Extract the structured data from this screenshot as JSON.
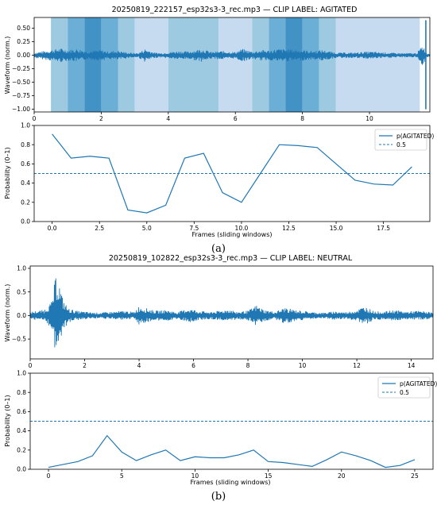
{
  "chart_data": [
    {
      "type": "line",
      "panel": "a",
      "title": "20250819_222157_esp32s3-3_rec.mp3 — CLIP LABEL: AGITATED",
      "xlabel": "",
      "ylabel": "Waveform (norm.)",
      "xlim": [
        0,
        11.8
      ],
      "ylim": [
        -1.05,
        0.7
      ],
      "xticks": [
        "0",
        "2",
        "4",
        "6",
        "8",
        "10"
      ],
      "yticks": [
        "0.50",
        "0.25",
        "0.00",
        "−0.25",
        "−0.50",
        "−0.75",
        "−1.00"
      ],
      "shaded_windows": [
        {
          "start": 0.5,
          "end": 1.0,
          "level": 1
        },
        {
          "start": 1.0,
          "end": 1.5,
          "level": 2
        },
        {
          "start": 1.5,
          "end": 2.0,
          "level": 3
        },
        {
          "start": 2.0,
          "end": 2.5,
          "level": 2
        },
        {
          "start": 2.5,
          "end": 3.0,
          "level": 1
        },
        {
          "start": 3.0,
          "end": 4.0,
          "level": 0
        },
        {
          "start": 4.0,
          "end": 5.5,
          "level": 1
        },
        {
          "start": 5.5,
          "end": 6.5,
          "level": 0
        },
        {
          "start": 6.5,
          "end": 7.0,
          "level": 1
        },
        {
          "start": 7.0,
          "end": 7.5,
          "level": 2
        },
        {
          "start": 7.5,
          "end": 8.0,
          "level": 3
        },
        {
          "start": 8.0,
          "end": 8.5,
          "level": 2
        },
        {
          "start": 8.5,
          "end": 9.0,
          "level": 1
        },
        {
          "start": 9.0,
          "end": 11.5,
          "level": 0
        }
      ],
      "envelope": {
        "x": [
          0,
          0.3,
          0.5,
          0.8,
          1.0,
          1.3,
          1.6,
          2.0,
          2.2,
          2.5,
          2.8,
          3.1,
          3.3,
          3.6,
          3.8,
          4.0,
          4.3,
          4.6,
          5.0,
          5.3,
          5.6,
          6.0,
          6.2,
          6.5,
          6.8,
          7.0,
          7.3,
          7.6,
          8.0,
          8.3,
          8.6,
          9.0,
          9.5,
          10.0,
          10.5,
          11.0,
          11.4,
          11.6,
          11.7,
          11.8
        ],
        "amp": [
          0.05,
          0.08,
          0.1,
          0.13,
          0.1,
          0.12,
          0.08,
          0.1,
          0.07,
          0.09,
          0.05,
          0.04,
          0.12,
          0.05,
          0.04,
          0.06,
          0.08,
          0.07,
          0.12,
          0.06,
          0.08,
          0.06,
          0.12,
          0.07,
          0.1,
          0.09,
          0.12,
          0.11,
          0.1,
          0.08,
          0.1,
          0.05,
          0.05,
          0.07,
          0.05,
          0.04,
          0.04,
          0.2,
          0.04,
          0.03
        ]
      },
      "spike": {
        "x": 11.68,
        "ymin": -1.0,
        "ymax": 0.65
      }
    },
    {
      "type": "line",
      "panel": "a",
      "xlabel": "Frames (sliding windows)",
      "ylabel": "Probability (0–1)",
      "xlim": [
        -0.95,
        19.95
      ],
      "ylim": [
        0,
        1.0
      ],
      "xticks": [
        "0.0",
        "2.5",
        "5.0",
        "7.5",
        "10.0",
        "12.5",
        "15.0",
        "17.5"
      ],
      "yticks": [
        "0.0",
        "0.2",
        "0.4",
        "0.6",
        "0.8",
        "1.0"
      ],
      "threshold": 0.5,
      "legend": [
        "p(AGITATED)",
        "0.5"
      ],
      "legend_position": "top-right",
      "x": [
        0,
        1,
        2,
        3,
        4,
        5,
        6,
        7,
        8,
        9,
        10,
        11,
        12,
        13,
        14,
        15,
        16,
        17,
        18,
        19
      ],
      "values": [
        0.91,
        0.66,
        0.68,
        0.66,
        0.12,
        0.09,
        0.17,
        0.66,
        0.71,
        0.3,
        0.2,
        0.5,
        0.8,
        0.79,
        0.77,
        0.6,
        0.43,
        0.39,
        0.38,
        0.57
      ]
    },
    {
      "type": "line",
      "panel": "b",
      "title": "20250819_102822_esp32s3-3_rec.mp3 — CLIP LABEL: NEUTRAL",
      "xlabel": "",
      "ylabel": "Waveform (norm.)",
      "xlim": [
        0,
        14.8
      ],
      "ylim": [
        -0.92,
        1.05
      ],
      "xticks": [
        "0",
        "2",
        "4",
        "6",
        "8",
        "10",
        "12",
        "14"
      ],
      "yticks": [
        "1.0",
        "0.5",
        "0.0",
        "−0.5"
      ],
      "envelope": {
        "x": [
          0,
          0.5,
          0.8,
          0.95,
          1.05,
          1.2,
          1.4,
          1.7,
          2.0,
          2.5,
          3.0,
          3.5,
          3.8,
          4.0,
          4.3,
          4.6,
          5.0,
          5.4,
          5.8,
          6.2,
          6.6,
          7.0,
          7.3,
          7.6,
          8.0,
          8.3,
          8.6,
          9.0,
          9.4,
          9.7,
          10.0,
          10.4,
          10.8,
          11.2,
          11.6,
          12.0,
          12.3,
          12.6,
          13.0,
          13.4,
          13.8,
          14.2,
          14.5,
          14.8
        ],
        "amp": [
          0.08,
          0.12,
          0.3,
          0.9,
          0.75,
          0.35,
          0.15,
          0.1,
          0.08,
          0.06,
          0.08,
          0.1,
          0.07,
          0.2,
          0.15,
          0.1,
          0.12,
          0.07,
          0.15,
          0.1,
          0.08,
          0.1,
          0.14,
          0.08,
          0.1,
          0.22,
          0.12,
          0.08,
          0.18,
          0.12,
          0.1,
          0.07,
          0.06,
          0.09,
          0.07,
          0.12,
          0.2,
          0.1,
          0.08,
          0.12,
          0.08,
          0.1,
          0.09,
          0.06
        ]
      }
    },
    {
      "type": "line",
      "panel": "b",
      "xlabel": "Frames (sliding windows)",
      "ylabel": "Probability (0–1)",
      "xlim": [
        -1.25,
        26.25
      ],
      "ylim": [
        0,
        1.0
      ],
      "xticks": [
        "0",
        "5",
        "10",
        "15",
        "20",
        "25"
      ],
      "yticks": [
        "0.0",
        "0.2",
        "0.4",
        "0.6",
        "0.8",
        "1.0"
      ],
      "threshold": 0.5,
      "legend": [
        "p(AGITATED)",
        "0.5"
      ],
      "legend_position": "top-right",
      "x": [
        0,
        1,
        2,
        3,
        4,
        5,
        6,
        7,
        8,
        9,
        10,
        11,
        12,
        13,
        14,
        15,
        16,
        17,
        18,
        19,
        20,
        21,
        22,
        23,
        24,
        25
      ],
      "values": [
        0.02,
        0.05,
        0.08,
        0.14,
        0.35,
        0.18,
        0.09,
        0.15,
        0.2,
        0.09,
        0.13,
        0.12,
        0.12,
        0.15,
        0.2,
        0.08,
        0.07,
        0.05,
        0.03,
        0.1,
        0.18,
        0.14,
        0.09,
        0.02,
        0.04,
        0.1
      ]
    }
  ],
  "captions": [
    "(a)",
    "(b)"
  ],
  "colors": {
    "line": "#1f77b4",
    "shade": [
      "#c6dbef",
      "#9ecae1",
      "#6baed6",
      "#4292c6"
    ]
  }
}
